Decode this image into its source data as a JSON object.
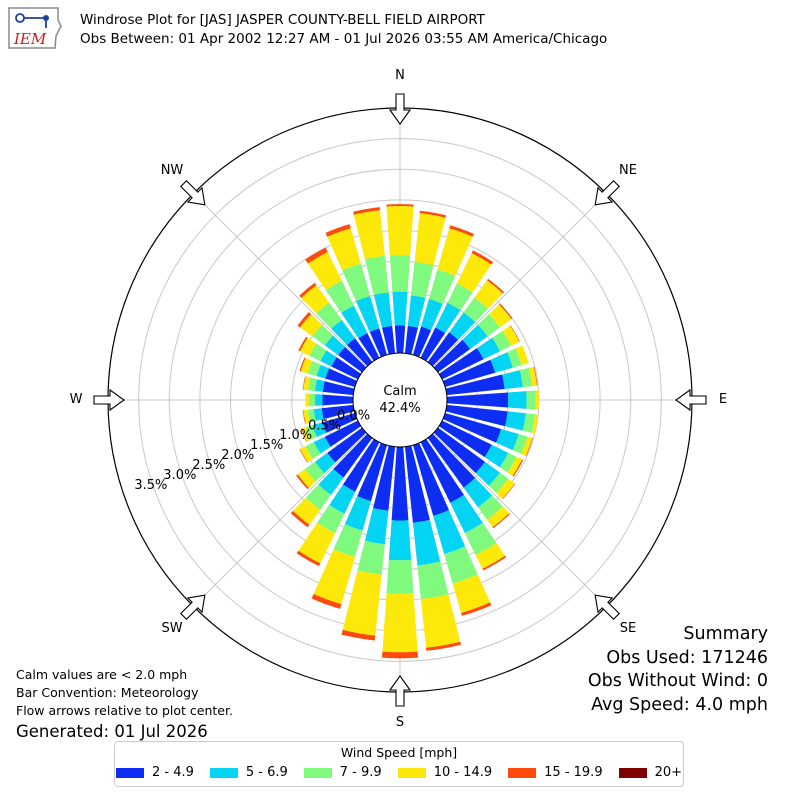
{
  "header": {
    "logo_text": "IEM",
    "title_line1": "Windrose Plot for [JAS] JASPER COUNTY-BELL FIELD AIRPORT",
    "title_line2": "Obs Between: 01 Apr 2002 12:27 AM - 01 Jul 2026 03:55 AM America/Chicago"
  },
  "notes": {
    "calm_note": "Calm values are < 2.0 mph",
    "bar_convention": "Bar Convention: Meteorology",
    "flow_note": "Flow arrows relative to plot center.",
    "generated": "Generated: 01 Jul 2026"
  },
  "summary": {
    "title": "Summary",
    "obs_used": "Obs Used: 171246",
    "obs_without_wind": "Obs Without Wind: 0",
    "avg_speed": "Avg Speed: 4.0 mph"
  },
  "chart_data": {
    "type": "windrose",
    "center_label": "Calm",
    "calm_percent": "42.4%",
    "compass_labels": [
      "N",
      "NE",
      "E",
      "SE",
      "S",
      "SW",
      "W",
      "NW"
    ],
    "radial_ticks": [
      "0.0%",
      "0.5%",
      "1.0%",
      "1.5%",
      "2.0%",
      "2.5%",
      "3.0%",
      "3.5%"
    ],
    "radial_max_percent": 4.0,
    "bar_convention": "meteorology",
    "legend_title": "Wind Speed [mph]",
    "bins": [
      {
        "label": "2 - 4.9",
        "color": "#0d2ef2"
      },
      {
        "label": "5 - 6.9",
        "color": "#03d4f4"
      },
      {
        "label": "7 - 9.9",
        "color": "#7ff97e"
      },
      {
        "label": "10 - 14.9",
        "color": "#fce90a"
      },
      {
        "label": "15 - 19.9",
        "color": "#ff4a0c"
      },
      {
        "label": "20+",
        "color": "#7f0000"
      }
    ],
    "directions_deg": [
      0,
      10,
      20,
      30,
      40,
      50,
      60,
      70,
      80,
      90,
      100,
      110,
      120,
      130,
      140,
      150,
      160,
      170,
      180,
      190,
      200,
      210,
      220,
      230,
      240,
      250,
      260,
      270,
      280,
      290,
      300,
      310,
      320,
      330,
      340,
      350
    ],
    "cumulative_percent": [
      [
        0.45,
        1.0,
        1.6,
        2.4,
        2.43,
        2.43
      ],
      [
        0.45,
        0.95,
        1.5,
        2.3,
        2.34,
        2.34
      ],
      [
        0.48,
        0.95,
        1.45,
        2.15,
        2.2,
        2.2
      ],
      [
        0.55,
        1.0,
        1.35,
        1.9,
        1.95,
        1.95
      ],
      [
        0.6,
        1.0,
        1.3,
        1.65,
        1.68,
        1.68
      ],
      [
        0.65,
        1.0,
        1.25,
        1.48,
        1.5,
        1.5
      ],
      [
        0.75,
        1.05,
        1.25,
        1.4,
        1.41,
        1.41
      ],
      [
        0.85,
        1.15,
        1.3,
        1.42,
        1.42,
        1.42
      ],
      [
        0.95,
        1.25,
        1.4,
        1.48,
        1.49,
        1.49
      ],
      [
        1.0,
        1.3,
        1.45,
        1.5,
        1.5,
        1.5
      ],
      [
        1.0,
        1.3,
        1.45,
        1.5,
        1.5,
        1.5
      ],
      [
        0.95,
        1.25,
        1.4,
        1.48,
        1.49,
        1.49
      ],
      [
        0.9,
        1.2,
        1.35,
        1.45,
        1.47,
        1.47
      ],
      [
        0.95,
        1.25,
        1.42,
        1.55,
        1.56,
        1.56
      ],
      [
        1.0,
        1.4,
        1.65,
        1.8,
        1.82,
        1.82
      ],
      [
        1.1,
        1.65,
        2.05,
        2.3,
        2.33,
        2.33
      ],
      [
        1.2,
        1.85,
        2.35,
        2.85,
        2.9,
        2.9
      ],
      [
        1.25,
        1.95,
        2.5,
        3.3,
        3.35,
        3.35
      ],
      [
        1.2,
        1.85,
        2.4,
        3.35,
        3.45,
        3.45
      ],
      [
        1.05,
        1.6,
        2.1,
        3.1,
        3.18,
        3.18
      ],
      [
        0.95,
        1.45,
        1.9,
        2.7,
        2.78,
        2.78
      ],
      [
        0.9,
        1.3,
        1.65,
        2.2,
        2.25,
        2.25
      ],
      [
        0.8,
        1.15,
        1.45,
        1.75,
        1.8,
        1.8
      ],
      [
        0.7,
        0.95,
        1.15,
        1.3,
        1.33,
        1.33
      ],
      [
        0.6,
        0.8,
        0.95,
        1.05,
        1.06,
        1.06
      ],
      [
        0.55,
        0.72,
        0.83,
        0.9,
        0.91,
        0.91
      ],
      [
        0.52,
        0.65,
        0.75,
        0.82,
        0.83,
        0.83
      ],
      [
        0.5,
        0.62,
        0.72,
        0.78,
        0.78,
        0.78
      ],
      [
        0.5,
        0.63,
        0.74,
        0.82,
        0.83,
        0.83
      ],
      [
        0.5,
        0.65,
        0.8,
        0.92,
        0.94,
        0.94
      ],
      [
        0.48,
        0.68,
        0.88,
        1.05,
        1.08,
        1.08
      ],
      [
        0.48,
        0.75,
        1.0,
        1.25,
        1.3,
        1.3
      ],
      [
        0.48,
        0.85,
        1.2,
        1.55,
        1.6,
        1.6
      ],
      [
        0.45,
        0.95,
        1.4,
        1.92,
        2.0,
        2.0
      ],
      [
        0.45,
        1.0,
        1.55,
        2.15,
        2.22,
        2.22
      ],
      [
        0.45,
        1.0,
        1.6,
        2.35,
        2.4,
        2.4
      ]
    ]
  }
}
